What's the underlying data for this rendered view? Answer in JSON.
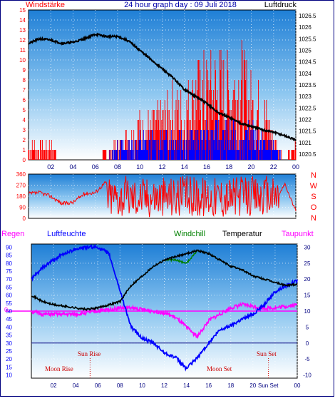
{
  "title": "24 hour graph day : 09 Juli 2018",
  "colors": {
    "wind": "#ff0000",
    "gust": "#0000ff",
    "pressure": "#000000",
    "direction": "#ff0000",
    "humidity": "#0000ff",
    "temperature": "#000000",
    "windchill": "#008000",
    "dewpoint": "#ff00ff",
    "rain": "#ff0000",
    "bg_top": "#1f7fd6",
    "bg_bottom": "#ffffff"
  },
  "x_ticks": [
    "02",
    "04",
    "06",
    "08",
    "10",
    "12",
    "14",
    "16",
    "18",
    "20",
    "22",
    "00"
  ],
  "panel1": {
    "left_title": "Windstärke",
    "right_title": "Luftdruck",
    "left_ticks": [
      "15",
      "14",
      "13",
      "12",
      "11",
      "10",
      "9",
      "8",
      "7",
      "6",
      "5",
      "4",
      "3",
      "2",
      "1",
      "0"
    ],
    "right_ticks": [
      "1026.5",
      "1026",
      "1025.5",
      "1025",
      "1024.5",
      "1024",
      "1023.5",
      "1023",
      "1022.5",
      "1022",
      "1021.5",
      "1021",
      "1020.5"
    ]
  },
  "panel2": {
    "ticks": [
      "360",
      "270",
      "180",
      "90",
      "0"
    ],
    "compass": [
      "N",
      "W",
      "S",
      "O",
      "N"
    ]
  },
  "panel3": {
    "regen_label": "Regen",
    "luftfeuchte_label": "Luftfeuchte",
    "windchill_label": "Windchill",
    "temperatur_label": "Temperatur",
    "taupunkt_label": "Taupunkt",
    "left_ticks": [
      "90",
      "85",
      "80",
      "75",
      "70",
      "65",
      "60",
      "55",
      "50",
      "45",
      "40",
      "35",
      "30",
      "25",
      "20",
      "15",
      "10"
    ],
    "right_ticks": [
      "30",
      "25",
      "20",
      "15",
      "10",
      "5",
      "0",
      "-5",
      "-10"
    ],
    "regen_value": "0",
    "sun_rise": "Sun Rise",
    "sun_set": "Sun Set",
    "moon_rise": "Moon Rise",
    "moon_set": "Moon Set",
    "bottom_marker": "Sun Set"
  },
  "chart_data": [
    {
      "type": "line",
      "name": "wind_pressure",
      "y_left": {
        "label": "Windstärke",
        "range": [
          0,
          15
        ]
      },
      "y_right": {
        "label": "Luftdruck",
        "range": [
          1020.25,
          1026.75
        ]
      },
      "x_hours": [
        0,
        1,
        2,
        3,
        4,
        5,
        6,
        7,
        8,
        9,
        10,
        11,
        12,
        13,
        14,
        15,
        16,
        17,
        18,
        19,
        20,
        21,
        22,
        23,
        24
      ],
      "pressure": [
        1025.3,
        1025.5,
        1025.45,
        1025.3,
        1025.35,
        1025.5,
        1025.7,
        1025.6,
        1025.6,
        1025.4,
        1025.0,
        1024.6,
        1024.2,
        1023.8,
        1023.3,
        1023.0,
        1022.7,
        1022.3,
        1022.1,
        1021.85,
        1021.7,
        1021.55,
        1021.45,
        1021.3,
        1021.1
      ],
      "wind_max": [
        2,
        2,
        2,
        0,
        0,
        0,
        0,
        1,
        2,
        4,
        5,
        5,
        6,
        8,
        7,
        11,
        11,
        12,
        11,
        13,
        9,
        9,
        3,
        0,
        2
      ],
      "gust_max": [
        0,
        0,
        0,
        0,
        0,
        0,
        0,
        0,
        2,
        2,
        3,
        3,
        3,
        4,
        4,
        3,
        4,
        4,
        4,
        3,
        4,
        3,
        2,
        0,
        0
      ]
    },
    {
      "type": "line",
      "name": "wind_direction",
      "y": {
        "range": [
          0,
          360
        ]
      },
      "x_hours": [
        0,
        1,
        2,
        3,
        4,
        5,
        6,
        7,
        8,
        9,
        10,
        11,
        12,
        13,
        14,
        15,
        16,
        17,
        18,
        19,
        20,
        21,
        22,
        23,
        24
      ],
      "direction": [
        200,
        210,
        180,
        120,
        130,
        200,
        210,
        300,
        230,
        200,
        190,
        180,
        200,
        210,
        190,
        200,
        180,
        190,
        200,
        210,
        180,
        150,
        100,
        280,
        60
      ]
    },
    {
      "type": "line",
      "name": "humidity_temperature",
      "y_left": {
        "label": "Luftfeuchte",
        "range": [
          8,
          92
        ]
      },
      "y_right": {
        "label": "Temperatur",
        "range": [
          -11,
          31
        ]
      },
      "x_hours": [
        0,
        1,
        2,
        3,
        4,
        5,
        6,
        7,
        8,
        9,
        10,
        11,
        12,
        13,
        14,
        15,
        16,
        17,
        18,
        19,
        20,
        21,
        22,
        23,
        24
      ],
      "humidity": [
        70,
        77,
        82,
        86,
        89,
        90,
        90,
        86,
        63,
        40,
        33,
        30,
        24,
        21,
        14,
        21,
        30,
        38,
        41,
        45,
        48,
        54,
        62,
        66,
        69
      ],
      "temperature": [
        15,
        13,
        12,
        11.5,
        11,
        10.5,
        11,
        12,
        13,
        18,
        21,
        24,
        26,
        27,
        28,
        29,
        28,
        26,
        24,
        23,
        21,
        20,
        19,
        18,
        18.5
      ],
      "windchill": [
        15,
        13,
        12,
        11.5,
        11,
        10.5,
        11,
        12,
        13,
        18,
        21,
        24,
        26,
        26,
        25,
        29,
        28,
        26,
        24,
        23,
        21,
        20,
        19,
        18,
        18.5
      ],
      "dewpoint": [
        10,
        9,
        9,
        9,
        9,
        9.5,
        10,
        10.5,
        11,
        11,
        10.5,
        10,
        9.5,
        8,
        5,
        2,
        7,
        9,
        11,
        12,
        11.5,
        11,
        11,
        11.5,
        12
      ],
      "rain": [
        0,
        0,
        0,
        0,
        0,
        0,
        0,
        0,
        0,
        0,
        0,
        0,
        0,
        0,
        0,
        0,
        0,
        0,
        0,
        0,
        0,
        0,
        0,
        0,
        0
      ],
      "sun_rise_hour": 5.3,
      "sun_set_hour": 21.4,
      "moon_rise_hour": 5.4,
      "moon_set_hour": 21.2
    }
  ]
}
